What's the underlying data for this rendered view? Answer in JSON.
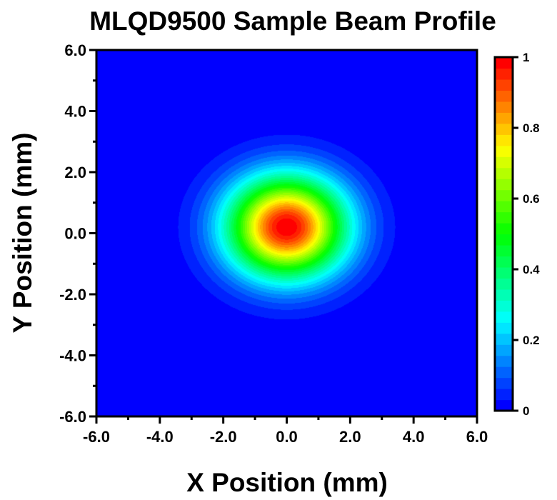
{
  "chart_data": {
    "type": "heatmap",
    "title": "MLQD9500 Sample Beam Profile",
    "xlabel": "X Position (mm)",
    "ylabel": "Y Position (mm)",
    "xlim": [
      -6.0,
      6.0
    ],
    "ylim": [
      -6.0,
      6.0
    ],
    "x_ticks": [
      "-6.0",
      "-4.0",
      "-2.0",
      "0.0",
      "2.0",
      "4.0",
      "6.0"
    ],
    "y_ticks": [
      "6.0",
      "4.0",
      "2.0",
      "0.0",
      "-2.0",
      "-4.0",
      "-6.0"
    ],
    "x_tick_values": [
      -6,
      -4,
      -2,
      0,
      2,
      4,
      6
    ],
    "y_tick_values": [
      6,
      4,
      2,
      0,
      -2,
      -4,
      -6
    ],
    "minor_tick_step": 1,
    "grid": false,
    "colormap": "rainbow (blue-cyan-green-yellow-red)",
    "colormap_stops": [
      {
        "value": 0.0,
        "color": "#0000ff"
      },
      {
        "value": 0.25,
        "color": "#00ffff"
      },
      {
        "value": 0.5,
        "color": "#00ff00"
      },
      {
        "value": 0.75,
        "color": "#ffff00"
      },
      {
        "value": 1.0,
        "color": "#ff0000"
      }
    ],
    "colorbar": {
      "range": [
        0,
        1
      ],
      "ticks": [
        "0",
        "0.2",
        "0.4",
        "0.6",
        "0.8",
        "1"
      ],
      "tick_values": [
        0,
        0.2,
        0.4,
        0.6,
        0.8,
        1.0
      ],
      "levels": 32,
      "placement": "right"
    },
    "beam": {
      "center_x_mm": 0.0,
      "center_y_mm": 0.2,
      "peak": 1.0,
      "sigma_x_mm": 1.3,
      "sigma_y_mm": 1.15,
      "background": 0.0
    }
  }
}
